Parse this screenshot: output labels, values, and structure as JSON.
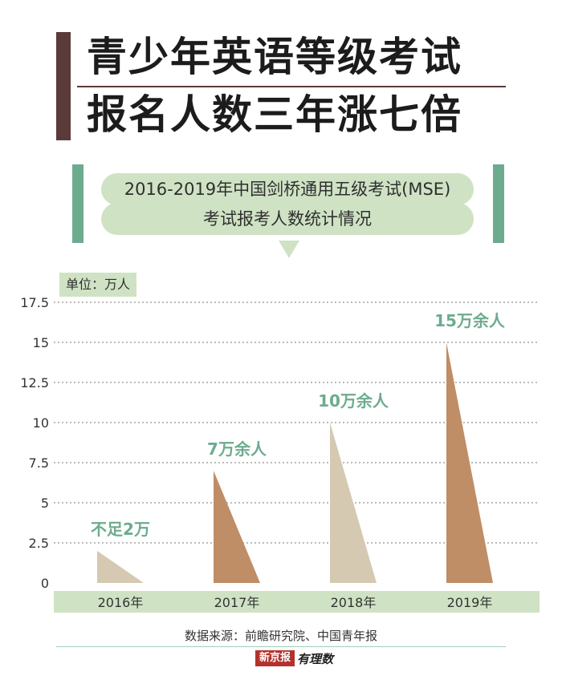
{
  "header": {
    "title_line1": "青少年英语等级考试",
    "title_line2": "报名人数三年涨七倍",
    "subtitle_line1": "2016-2019年中国剑桥通用五级考试(MSE)",
    "subtitle_line2": "考试报考人数统计情况",
    "accent_color": "#5a3b39",
    "green_color": "#6dab8f",
    "pill_color": "#cfe3c4"
  },
  "chart_data": {
    "type": "bar",
    "unit_label": "单位：万人",
    "categories": [
      "2016年",
      "2017年",
      "2018年",
      "2019年"
    ],
    "values": [
      2,
      7,
      10,
      15
    ],
    "data_labels": [
      "不足2万",
      "7万余人",
      "10万余人",
      "15万余人"
    ],
    "bar_colors": [
      "#d5c9b2",
      "#bf8d66",
      "#d5c9b2",
      "#bf8d66"
    ],
    "yticks": [
      "0",
      "2.5",
      "5",
      "7.5",
      "10",
      "12.5",
      "15",
      "17.5"
    ],
    "ylim": [
      0,
      17.5
    ],
    "grid": true,
    "label_color": "#6dab8f"
  },
  "footer": {
    "source": "数据来源：前瞻研究院、中国青年报",
    "logo_main": "新京报",
    "logo_tail": "有理数"
  }
}
